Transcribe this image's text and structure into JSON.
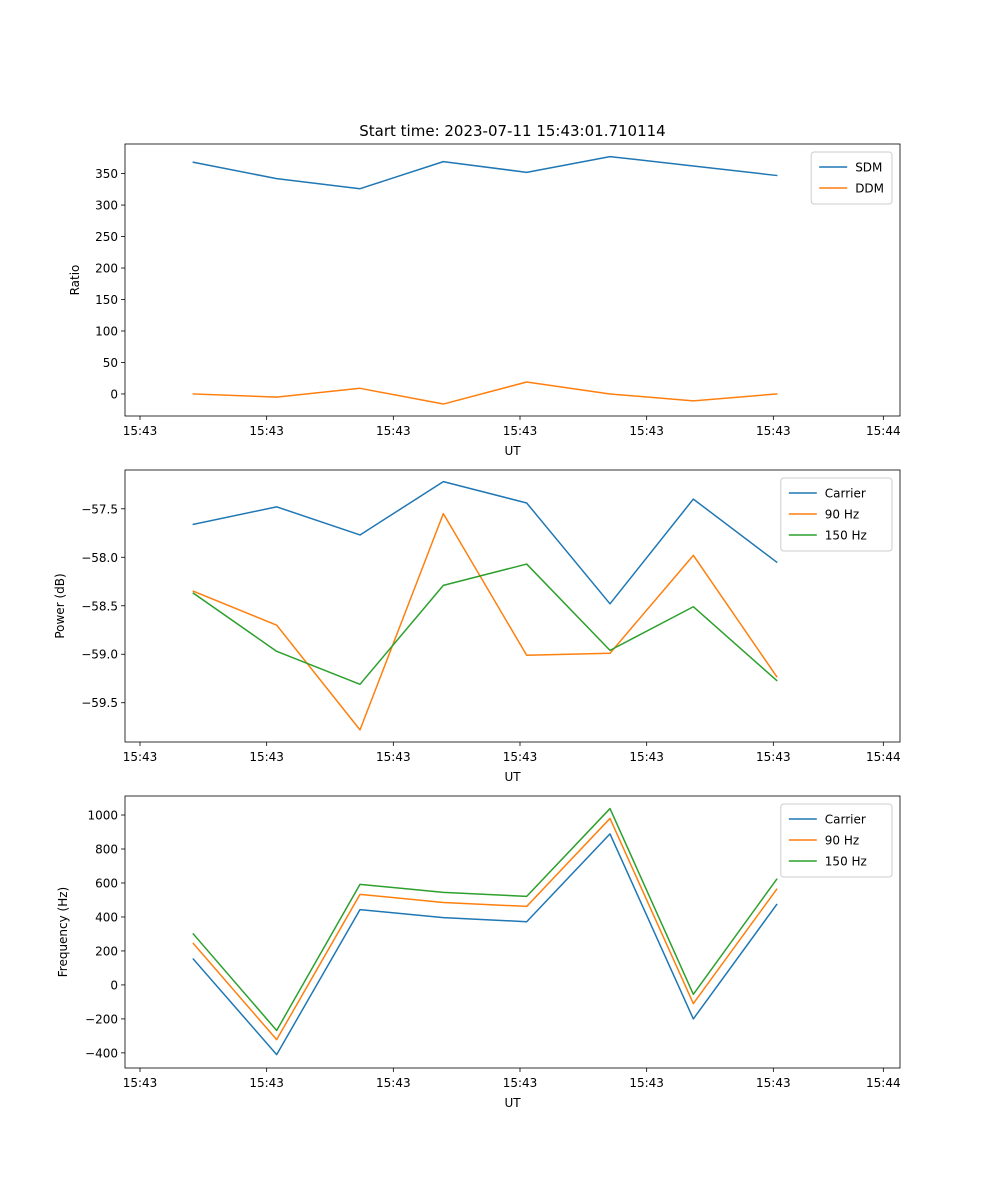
{
  "figure_title": "Start time: 2023-07-11 15:43:01.710114",
  "colors": {
    "blue": "#1f77b4",
    "orange": "#ff7f0e",
    "green": "#2ca02c"
  },
  "chart_data": [
    {
      "type": "line",
      "title": "Start time: 2023-07-11 15:43:01.710114",
      "xlabel": "UT",
      "ylabel": "Ratio",
      "x": [
        1,
        2,
        3,
        4,
        5,
        6,
        7,
        8
      ],
      "xlim": [
        0.18,
        9.48
      ],
      "xticks": [
        0.36,
        1.88,
        3.4,
        4.92,
        6.44,
        7.96,
        9.28
      ],
      "xtick_labels": [
        "15:43",
        "15:43",
        "15:43",
        "15:43",
        "15:43",
        "15:43",
        "15:44"
      ],
      "ylim": [
        -35,
        397
      ],
      "yticks": [
        0,
        50,
        100,
        150,
        200,
        250,
        300,
        350
      ],
      "ytick_labels": [
        "0",
        "50",
        "100",
        "150",
        "200",
        "250",
        "300",
        "350"
      ],
      "legend_position": "top-right",
      "series": [
        {
          "name": "SDM",
          "color": "#1f77b4",
          "values": [
            368,
            342,
            326,
            369,
            352,
            377,
            362,
            347
          ]
        },
        {
          "name": "DDM",
          "color": "#ff7f0e",
          "values": [
            0,
            -5,
            9,
            -16,
            19,
            0,
            -11,
            0
          ]
        }
      ]
    },
    {
      "type": "line",
      "title": "",
      "xlabel": "UT",
      "ylabel": "Power (dB)",
      "x": [
        1,
        2,
        3,
        4,
        5,
        6,
        7,
        8
      ],
      "xlim": [
        0.18,
        9.48
      ],
      "xticks": [
        0.36,
        1.88,
        3.4,
        4.92,
        6.44,
        7.96,
        9.28
      ],
      "xtick_labels": [
        "15:43",
        "15:43",
        "15:43",
        "15:43",
        "15:43",
        "15:43",
        "15:44"
      ],
      "ylim": [
        -59.905,
        -57.1
      ],
      "yticks": [
        -59.5,
        -59.0,
        -58.5,
        -58.0,
        -57.5
      ],
      "ytick_labels": [
        "−59.5",
        "−59.0",
        "−58.5",
        "−58.0",
        "−57.5"
      ],
      "legend_position": "top-right",
      "series": [
        {
          "name": "Carrier",
          "color": "#1f77b4",
          "values": [
            -57.66,
            -57.48,
            -57.77,
            -57.22,
            -57.44,
            -58.48,
            -57.4,
            -58.05
          ]
        },
        {
          "name": "90 Hz",
          "color": "#ff7f0e",
          "values": [
            -58.35,
            -58.7,
            -59.78,
            -57.55,
            -59.01,
            -58.99,
            -57.98,
            -59.23
          ]
        },
        {
          "name": "150 Hz",
          "color": "#2ca02c",
          "values": [
            -58.37,
            -58.97,
            -59.31,
            -58.29,
            -58.07,
            -58.96,
            -58.51,
            -59.27
          ]
        }
      ]
    },
    {
      "type": "line",
      "title": "",
      "xlabel": "UT",
      "ylabel": "Frequency (Hz)",
      "x": [
        1,
        2,
        3,
        4,
        5,
        6,
        7,
        8
      ],
      "xlim": [
        0.18,
        9.48
      ],
      "xticks": [
        0.36,
        1.88,
        3.4,
        4.92,
        6.44,
        7.96,
        9.28
      ],
      "xtick_labels": [
        "15:43",
        "15:43",
        "15:43",
        "15:43",
        "15:43",
        "15:43",
        "15:44"
      ],
      "ylim": [
        -489,
        1112
      ],
      "yticks": [
        -400,
        -200,
        0,
        200,
        400,
        600,
        800,
        1000
      ],
      "ytick_labels": [
        "−400",
        "−200",
        "0",
        "200",
        "400",
        "600",
        "800",
        "1000"
      ],
      "legend_position": "top-right",
      "series": [
        {
          "name": "Carrier",
          "color": "#1f77b4",
          "values": [
            152,
            -410,
            443,
            396,
            372,
            889,
            -200,
            473
          ]
        },
        {
          "name": "90 Hz",
          "color": "#ff7f0e",
          "values": [
            244,
            -322,
            533,
            485,
            462,
            980,
            -110,
            563
          ]
        },
        {
          "name": "150 Hz",
          "color": "#2ca02c",
          "values": [
            300,
            -268,
            592,
            545,
            521,
            1038,
            -55,
            622
          ]
        }
      ]
    }
  ]
}
